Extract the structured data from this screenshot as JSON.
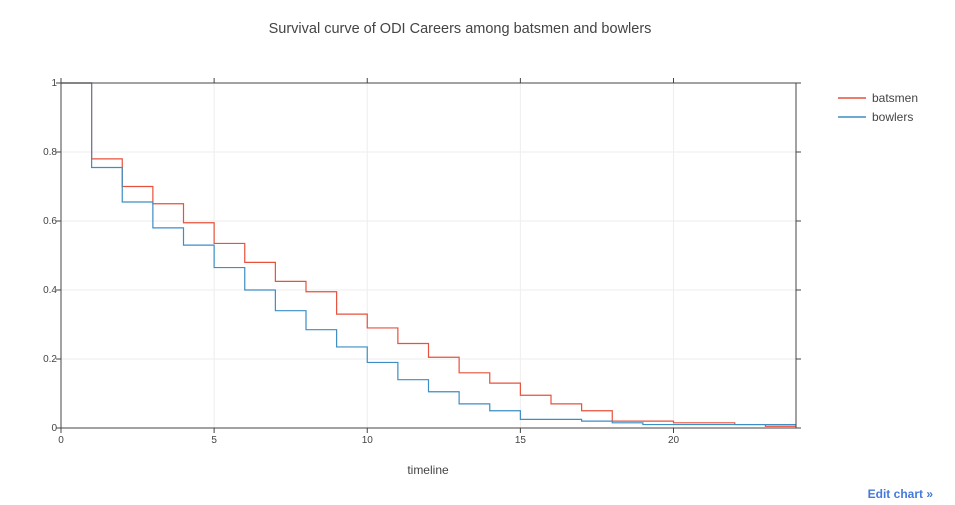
{
  "chart_data": {
    "type": "line",
    "line_shape": "step",
    "title": "Survival curve of ODI Careers among batsmen and bowlers",
    "xlabel": "timeline",
    "ylabel": "",
    "xlim": [
      0,
      24
    ],
    "ylim": [
      0,
      1
    ],
    "x_ticks": [
      0,
      5,
      10,
      15,
      20
    ],
    "y_ticks": [
      0,
      0.2,
      0.4,
      0.6,
      0.8,
      1
    ],
    "x_tick_labels": [
      "0",
      "5",
      "10",
      "15",
      "20"
    ],
    "y_tick_labels": [
      "0",
      "0.2",
      "0.4",
      "0.6",
      "0.8",
      "1"
    ],
    "grid": true,
    "legend_position": "top-right",
    "series": [
      {
        "name": "batsmen",
        "color": "#e8513b",
        "x": [
          0,
          1,
          2,
          3,
          4,
          5,
          6,
          7,
          8,
          9,
          10,
          11,
          12,
          13,
          14,
          15,
          16,
          17,
          18,
          19,
          20,
          21,
          22,
          23,
          24
        ],
        "y": [
          1.0,
          0.78,
          0.7,
          0.65,
          0.595,
          0.535,
          0.48,
          0.425,
          0.395,
          0.33,
          0.29,
          0.245,
          0.205,
          0.16,
          0.13,
          0.095,
          0.07,
          0.05,
          0.02,
          0.02,
          0.015,
          0.015,
          0.01,
          0.005,
          0.005
        ]
      },
      {
        "name": "bowlers",
        "color": "#3d8ec4",
        "x": [
          0,
          1,
          2,
          3,
          4,
          5,
          6,
          7,
          8,
          9,
          10,
          11,
          12,
          13,
          14,
          15,
          16,
          17,
          18,
          19,
          20
        ],
        "y": [
          1.0,
          0.755,
          0.655,
          0.58,
          0.53,
          0.465,
          0.4,
          0.34,
          0.285,
          0.235,
          0.19,
          0.14,
          0.105,
          0.07,
          0.05,
          0.025,
          0.025,
          0.02,
          0.015,
          0.01,
          0.01
        ]
      }
    ]
  },
  "footer": {
    "edit_chart_label": "Edit chart »"
  }
}
